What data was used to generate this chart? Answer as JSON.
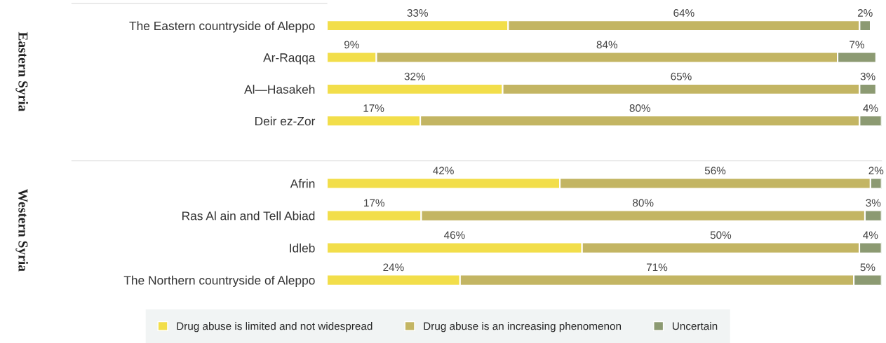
{
  "chart_data": [
    {
      "type": "bar",
      "orientation": "horizontal",
      "stacked": true,
      "ylabel": "Eastern Syria",
      "categories": [
        "The Eastern countryside of Aleppo",
        "Ar-Raqqa",
        "Al—Hasakeh",
        "Deir ez-Zor"
      ],
      "series": [
        {
          "color": "#f2de4a",
          "values": [
            33,
            9,
            32,
            17
          ],
          "value_labels": [
            "33%",
            "9%",
            "32%",
            "17%"
          ]
        },
        {
          "color": "#c3b563",
          "values": [
            64,
            84,
            65,
            80
          ],
          "value_labels": [
            "64%",
            "84%",
            "65%",
            "80%"
          ]
        },
        {
          "color": "#8c9a72",
          "values": [
            2,
            7,
            3,
            4
          ],
          "value_labels": [
            "2%",
            "7%",
            "3%",
            "4%"
          ]
        }
      ]
    },
    {
      "type": "bar",
      "orientation": "horizontal",
      "stacked": true,
      "ylabel": "Western Syria",
      "legend": "bottom",
      "categories": [
        "Afrin",
        "Ras Al ain and Tell Abiad",
        "Idleb",
        "The Northern countryside of Aleppo"
      ],
      "series": [
        {
          "name": "Drug abuse is limited and not widespread",
          "color": "#f2de4a",
          "values": [
            42,
            17,
            46,
            24
          ],
          "value_labels": [
            "42%",
            "17%",
            "46%",
            "24%"
          ]
        },
        {
          "name": "Drug abuse is an increasing phenomenon",
          "color": "#c3b563",
          "values": [
            56,
            80,
            50,
            71
          ],
          "value_labels": [
            "56%",
            "80%",
            "50%",
            "71%"
          ]
        },
        {
          "name": "Uncertain",
          "color": "#8c9a72",
          "values": [
            2,
            3,
            4,
            5
          ],
          "value_labels": [
            "2%",
            "3%",
            "4%",
            "5%"
          ]
        }
      ]
    }
  ]
}
